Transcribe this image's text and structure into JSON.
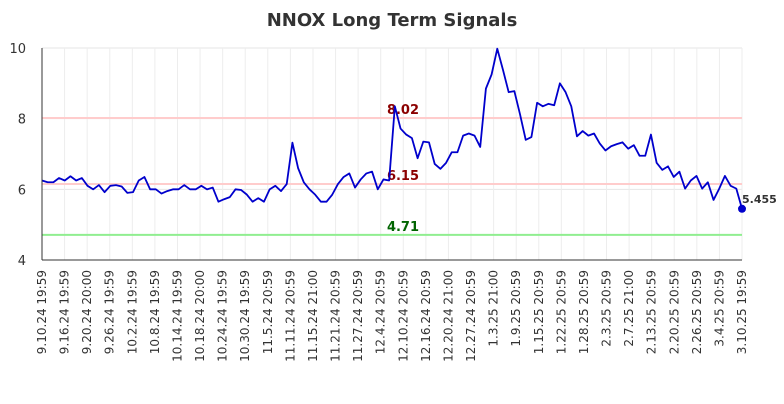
{
  "chart_data": {
    "type": "line",
    "title": "NNOX Long Term Signals",
    "ylim": [
      4,
      10
    ],
    "yticks": [
      "4",
      "6",
      "8",
      "10"
    ],
    "grid": true,
    "xtick_labels": [
      "9.10.24 19:59",
      "9.16.24 19:59",
      "9.20.24 20:00",
      "9.26.24 19:59",
      "10.2.24 19:59",
      "10.8.24 19:59",
      "10.14.24 19:59",
      "10.18.24 20:00",
      "10.24.24 19:59",
      "10.30.24 19:59",
      "11.5.24 20:59",
      "11.11.24 20:59",
      "11.15.24 21:00",
      "11.21.24 20:59",
      "11.27.24 20:59",
      "12.4.24 20:59",
      "12.10.24 20:59",
      "12.16.24 20:59",
      "12.20.24 21:00",
      "12.27.24 20:59",
      "1.3.25 21:00",
      "1.9.25 20:59",
      "1.15.25 20:59",
      "1.22.25 20:59",
      "1.28.25 20:59",
      "2.3.25 20:59",
      "2.7.25 21:00",
      "2.13.25 20:59",
      "2.20.25 20:59",
      "2.26.25 20:59",
      "3.4.25 20:59",
      "3.10.25 19:59"
    ],
    "series": [
      {
        "color": "#0000cc",
        "values": [
          6.25,
          6.2,
          6.2,
          6.32,
          6.25,
          6.37,
          6.25,
          6.32,
          6.1,
          6.0,
          6.12,
          5.92,
          6.1,
          6.12,
          6.08,
          5.9,
          5.92,
          6.25,
          6.35,
          6.0,
          6.0,
          5.88,
          5.95,
          6.0,
          6.0,
          6.12,
          6.0,
          6.0,
          6.1,
          6.0,
          6.05,
          5.65,
          5.72,
          5.78,
          6.0,
          5.98,
          5.85,
          5.65,
          5.75,
          5.65,
          6.0,
          6.1,
          5.95,
          6.15,
          7.32,
          6.6,
          6.2,
          6.0,
          5.85,
          5.65,
          5.65,
          5.85,
          6.15,
          6.35,
          6.45,
          6.05,
          6.28,
          6.45,
          6.5,
          6.0,
          6.28,
          6.25,
          8.35,
          7.72,
          7.55,
          7.45,
          6.88,
          7.35,
          7.33,
          6.72,
          6.58,
          6.75,
          7.05,
          7.05,
          7.52,
          7.58,
          7.52,
          7.2,
          8.85,
          9.25,
          9.98,
          9.38,
          8.75,
          8.78,
          8.12,
          7.4,
          7.48,
          8.45,
          8.35,
          8.42,
          8.38,
          9.0,
          8.75,
          8.35,
          7.5,
          7.65,
          7.52,
          7.58,
          7.3,
          7.1,
          7.22,
          7.28,
          7.33,
          7.15,
          7.25,
          6.95,
          6.95,
          7.55,
          6.75,
          6.55,
          6.65,
          6.35,
          6.5,
          6.02,
          6.25,
          6.38,
          6.02,
          6.2,
          5.7,
          6.02,
          6.38,
          6.1,
          6.02,
          5.45
        ]
      }
    ],
    "levels": [
      {
        "value": 8.02,
        "label": "8.02",
        "line_color": "#ffcccc",
        "text_color": "#8b0000"
      },
      {
        "value": 6.15,
        "label": "6.15",
        "line_color": "#ffcccc",
        "text_color": "#8b0000"
      },
      {
        "value": 4.71,
        "label": "4.71",
        "line_color": "#90ee90",
        "text_color": "#006400"
      }
    ],
    "last_point": {
      "label": "5.455",
      "color": "#0000cc"
    }
  }
}
